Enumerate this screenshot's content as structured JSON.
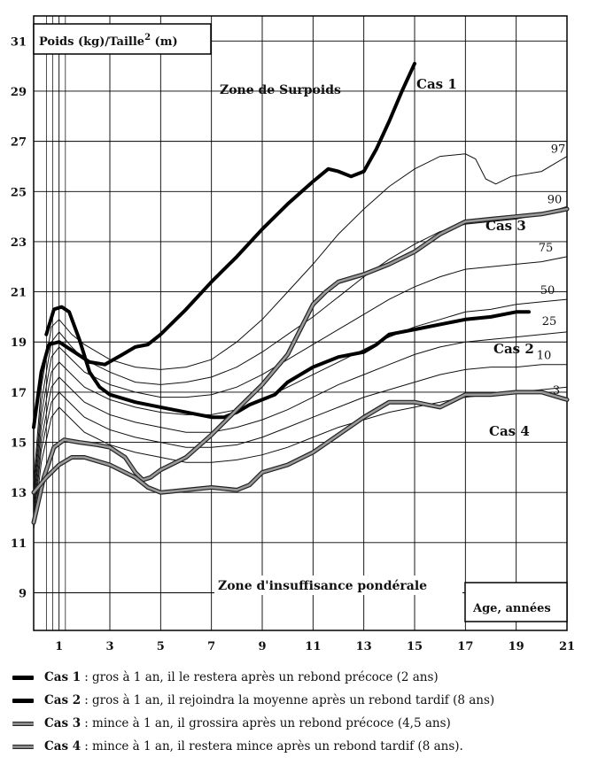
{
  "chart_data": {
    "type": "line",
    "ylabel_left": "Poids (kg)/Taille",
    "ylabel_sup": "2",
    "ylabel_right": " (m)",
    "xlabel": "Age, années",
    "zone_top": "Zone de Surpoids",
    "zone_bottom": "Zone d'insuffisance pondérale",
    "xlim": [
      0,
      21
    ],
    "ylim": [
      7.5,
      32
    ],
    "x_ticks": [
      1,
      3,
      5,
      7,
      9,
      11,
      13,
      15,
      17,
      19,
      21
    ],
    "y_ticks": [
      9,
      11,
      13,
      15,
      17,
      19,
      21,
      23,
      25,
      27,
      29,
      31
    ],
    "grid": true,
    "percentiles": [
      {
        "label": "97",
        "points": [
          [
            0,
            13.4
          ],
          [
            0.3,
            17.2
          ],
          [
            0.7,
            19.6
          ],
          [
            1,
            19.9
          ],
          [
            1.5,
            19.3
          ],
          [
            2,
            18.9
          ],
          [
            3,
            18.3
          ],
          [
            4,
            18.0
          ],
          [
            5,
            17.9
          ],
          [
            6,
            18.0
          ],
          [
            7,
            18.3
          ],
          [
            8,
            19.0
          ],
          [
            9,
            19.9
          ],
          [
            10,
            21.0
          ],
          [
            11,
            22.1
          ],
          [
            12,
            23.3
          ],
          [
            13,
            24.3
          ],
          [
            14,
            25.2
          ],
          [
            15,
            25.9
          ],
          [
            16,
            26.4
          ],
          [
            17,
            26.5
          ],
          [
            17.4,
            26.3
          ],
          [
            17.8,
            25.5
          ],
          [
            18.2,
            25.3
          ],
          [
            18.8,
            25.6
          ],
          [
            20,
            25.8
          ],
          [
            21,
            26.4
          ]
        ]
      },
      {
        "label": "90",
        "points": [
          [
            0,
            13.0
          ],
          [
            0.3,
            16.6
          ],
          [
            0.7,
            19.0
          ],
          [
            1,
            19.4
          ],
          [
            1.5,
            18.8
          ],
          [
            2,
            18.3
          ],
          [
            3,
            17.8
          ],
          [
            4,
            17.4
          ],
          [
            5,
            17.3
          ],
          [
            6,
            17.4
          ],
          [
            7,
            17.6
          ],
          [
            8,
            18.0
          ],
          [
            9,
            18.6
          ],
          [
            10,
            19.3
          ],
          [
            11,
            20.0
          ],
          [
            12,
            20.8
          ],
          [
            13,
            21.6
          ],
          [
            14,
            22.3
          ],
          [
            15,
            22.9
          ],
          [
            16,
            23.4
          ],
          [
            17,
            23.7
          ],
          [
            18,
            23.8
          ],
          [
            19,
            23.9
          ],
          [
            20,
            24.1
          ],
          [
            21,
            24.4
          ]
        ]
      },
      {
        "label": "75",
        "points": [
          [
            0,
            12.7
          ],
          [
            0.3,
            16.1
          ],
          [
            0.7,
            18.4
          ],
          [
            1,
            18.8
          ],
          [
            1.5,
            18.3
          ],
          [
            2,
            17.8
          ],
          [
            3,
            17.3
          ],
          [
            4,
            17.0
          ],
          [
            5,
            16.8
          ],
          [
            6,
            16.8
          ],
          [
            7,
            16.9
          ],
          [
            8,
            17.2
          ],
          [
            9,
            17.7
          ],
          [
            10,
            18.3
          ],
          [
            11,
            18.9
          ],
          [
            12,
            19.5
          ],
          [
            13,
            20.1
          ],
          [
            14,
            20.7
          ],
          [
            15,
            21.2
          ],
          [
            16,
            21.6
          ],
          [
            17,
            21.9
          ],
          [
            18,
            22.0
          ],
          [
            19,
            22.1
          ],
          [
            20,
            22.2
          ],
          [
            21,
            22.4
          ]
        ]
      },
      {
        "label": "50",
        "points": [
          [
            0,
            12.4
          ],
          [
            0.3,
            15.6
          ],
          [
            0.7,
            17.8
          ],
          [
            1,
            18.2
          ],
          [
            1.5,
            17.7
          ],
          [
            2,
            17.2
          ],
          [
            3,
            16.7
          ],
          [
            4,
            16.4
          ],
          [
            5,
            16.2
          ],
          [
            6,
            16.1
          ],
          [
            7,
            16.1
          ],
          [
            8,
            16.3
          ],
          [
            9,
            16.7
          ],
          [
            10,
            17.2
          ],
          [
            11,
            17.7
          ],
          [
            12,
            18.2
          ],
          [
            13,
            18.7
          ],
          [
            14,
            19.2
          ],
          [
            15,
            19.6
          ],
          [
            16,
            19.9
          ],
          [
            17,
            20.2
          ],
          [
            18,
            20.3
          ],
          [
            19,
            20.5
          ],
          [
            20,
            20.6
          ],
          [
            21,
            20.7
          ]
        ]
      },
      {
        "label": "25",
        "points": [
          [
            0,
            12.1
          ],
          [
            0.3,
            15.1
          ],
          [
            0.7,
            17.2
          ],
          [
            1,
            17.6
          ],
          [
            1.5,
            17.1
          ],
          [
            2,
            16.6
          ],
          [
            3,
            16.1
          ],
          [
            4,
            15.8
          ],
          [
            5,
            15.6
          ],
          [
            6,
            15.4
          ],
          [
            7,
            15.4
          ],
          [
            8,
            15.6
          ],
          [
            9,
            15.9
          ],
          [
            10,
            16.3
          ],
          [
            11,
            16.8
          ],
          [
            12,
            17.3
          ],
          [
            13,
            17.7
          ],
          [
            14,
            18.1
          ],
          [
            15,
            18.5
          ],
          [
            16,
            18.8
          ],
          [
            17,
            19.0
          ],
          [
            18,
            19.1
          ],
          [
            19,
            19.2
          ],
          [
            20,
            19.3
          ],
          [
            21,
            19.4
          ]
        ]
      },
      {
        "label": "10",
        "points": [
          [
            0,
            11.8
          ],
          [
            0.3,
            14.7
          ],
          [
            0.7,
            16.6
          ],
          [
            1,
            17.0
          ],
          [
            1.5,
            16.5
          ],
          [
            2,
            16.0
          ],
          [
            3,
            15.5
          ],
          [
            4,
            15.2
          ],
          [
            5,
            15.0
          ],
          [
            6,
            14.8
          ],
          [
            7,
            14.8
          ],
          [
            8,
            14.9
          ],
          [
            9,
            15.2
          ],
          [
            10,
            15.6
          ],
          [
            11,
            16.0
          ],
          [
            12,
            16.4
          ],
          [
            13,
            16.8
          ],
          [
            14,
            17.1
          ],
          [
            15,
            17.4
          ],
          [
            16,
            17.7
          ],
          [
            17,
            17.9
          ],
          [
            18,
            18.0
          ],
          [
            19,
            18.0
          ],
          [
            20,
            18.1
          ],
          [
            21,
            18.1
          ]
        ]
      },
      {
        "label": "3",
        "points": [
          [
            0,
            11.5
          ],
          [
            0.3,
            14.2
          ],
          [
            0.7,
            16.0
          ],
          [
            1,
            16.4
          ],
          [
            1.5,
            15.9
          ],
          [
            2,
            15.4
          ],
          [
            3,
            14.9
          ],
          [
            4,
            14.6
          ],
          [
            5,
            14.4
          ],
          [
            6,
            14.2
          ],
          [
            7,
            14.2
          ],
          [
            8,
            14.3
          ],
          [
            9,
            14.5
          ],
          [
            10,
            14.8
          ],
          [
            11,
            15.2
          ],
          [
            12,
            15.6
          ],
          [
            13,
            15.9
          ],
          [
            14,
            16.2
          ],
          [
            15,
            16.4
          ],
          [
            16,
            16.6
          ],
          [
            17,
            16.8
          ],
          [
            18,
            16.9
          ],
          [
            19,
            17.0
          ],
          [
            20,
            17.1
          ],
          [
            21,
            17.2
          ]
        ]
      }
    ],
    "series": [
      {
        "name": "Cas 1",
        "style": "black",
        "points": [
          [
            0,
            15.6
          ],
          [
            0.3,
            17.8
          ],
          [
            0.6,
            18.9
          ],
          [
            1,
            19.0
          ],
          [
            1.6,
            18.6
          ],
          [
            2.2,
            18.2
          ],
          [
            2.8,
            18.1
          ],
          [
            3.5,
            18.5
          ],
          [
            4,
            18.8
          ],
          [
            4.5,
            18.9
          ],
          [
            5,
            19.3
          ],
          [
            6,
            20.3
          ],
          [
            7,
            21.4
          ],
          [
            8,
            22.4
          ],
          [
            9,
            23.5
          ],
          [
            10,
            24.5
          ],
          [
            11,
            25.4
          ],
          [
            11.6,
            25.9
          ],
          [
            12,
            25.8
          ],
          [
            12.5,
            25.6
          ],
          [
            13,
            25.8
          ],
          [
            13.5,
            26.7
          ],
          [
            14,
            27.8
          ],
          [
            14.5,
            29.0
          ],
          [
            15,
            30.1
          ]
        ]
      },
      {
        "name": "Cas 2",
        "style": "black",
        "points": [
          [
            0.5,
            19.3
          ],
          [
            0.8,
            20.3
          ],
          [
            1.1,
            20.4
          ],
          [
            1.4,
            20.2
          ],
          [
            1.8,
            19.1
          ],
          [
            2.2,
            17.8
          ],
          [
            2.6,
            17.2
          ],
          [
            3,
            16.9
          ],
          [
            4,
            16.6
          ],
          [
            5,
            16.4
          ],
          [
            6,
            16.2
          ],
          [
            7,
            16.0
          ],
          [
            7.5,
            16.0
          ],
          [
            8,
            16.2
          ],
          [
            8.5,
            16.5
          ],
          [
            9,
            16.7
          ],
          [
            9.5,
            16.9
          ],
          [
            10,
            17.4
          ],
          [
            11,
            18.0
          ],
          [
            12,
            18.4
          ],
          [
            13,
            18.6
          ],
          [
            13.5,
            18.9
          ],
          [
            14,
            19.3
          ],
          [
            15,
            19.5
          ],
          [
            16,
            19.7
          ],
          [
            17,
            19.9
          ],
          [
            18,
            20.0
          ],
          [
            19,
            20.2
          ],
          [
            19.5,
            20.2
          ]
        ]
      },
      {
        "name": "Cas 3",
        "style": "grey",
        "points": [
          [
            0,
            11.8
          ],
          [
            0.4,
            13.6
          ],
          [
            0.8,
            14.8
          ],
          [
            1.2,
            15.1
          ],
          [
            1.8,
            15.0
          ],
          [
            2.5,
            14.9
          ],
          [
            3,
            14.8
          ],
          [
            3.6,
            14.4
          ],
          [
            4,
            13.8
          ],
          [
            4.3,
            13.5
          ],
          [
            4.6,
            13.6
          ],
          [
            5,
            13.9
          ],
          [
            6,
            14.4
          ],
          [
            7,
            15.3
          ],
          [
            8,
            16.3
          ],
          [
            9,
            17.3
          ],
          [
            10,
            18.5
          ],
          [
            10.5,
            19.5
          ],
          [
            11,
            20.5
          ],
          [
            11.5,
            21.0
          ],
          [
            12,
            21.4
          ],
          [
            13,
            21.7
          ],
          [
            14,
            22.1
          ],
          [
            15,
            22.6
          ],
          [
            16,
            23.3
          ],
          [
            17,
            23.8
          ],
          [
            18,
            23.9
          ],
          [
            19,
            24.0
          ],
          [
            20,
            24.1
          ],
          [
            21,
            24.3
          ]
        ]
      },
      {
        "name": "Cas 4",
        "style": "grey",
        "points": [
          [
            0,
            13.0
          ],
          [
            0.5,
            13.6
          ],
          [
            1,
            14.1
          ],
          [
            1.5,
            14.4
          ],
          [
            2,
            14.4
          ],
          [
            3,
            14.1
          ],
          [
            4,
            13.6
          ],
          [
            4.5,
            13.2
          ],
          [
            5,
            13.0
          ],
          [
            6,
            13.1
          ],
          [
            7,
            13.2
          ],
          [
            8,
            13.1
          ],
          [
            8.5,
            13.3
          ],
          [
            9,
            13.8
          ],
          [
            10,
            14.1
          ],
          [
            11,
            14.6
          ],
          [
            12,
            15.3
          ],
          [
            13,
            16.0
          ],
          [
            14,
            16.6
          ],
          [
            15,
            16.6
          ],
          [
            16,
            16.4
          ],
          [
            17,
            16.9
          ],
          [
            18,
            16.9
          ],
          [
            19,
            17.0
          ],
          [
            20,
            17.0
          ],
          [
            21,
            16.7
          ]
        ]
      }
    ],
    "case_labels": {
      "cas1": "Cas 1",
      "cas2": "Cas 2",
      "cas3": "Cas 3",
      "cas4": "Cas 4"
    }
  },
  "legend": [
    {
      "case": "Cas 1",
      "style": "black",
      "text": " : gros à 1 an, il le restera après un rebond précoce (2 ans)"
    },
    {
      "case": "Cas 2",
      "style": "black",
      "text": " : gros à 1 an, il rejoindra la moyenne après un rebond tardif (8 ans)"
    },
    {
      "case": "Cas 3",
      "style": "grey",
      "text": " : mince à 1 an, il grossira après un rebond précoce (4,5 ans)"
    },
    {
      "case": "Cas 4",
      "style": "grey",
      "text": " : mince à 1 an, il restera mince après un rebond tardif (8 ans)."
    }
  ]
}
